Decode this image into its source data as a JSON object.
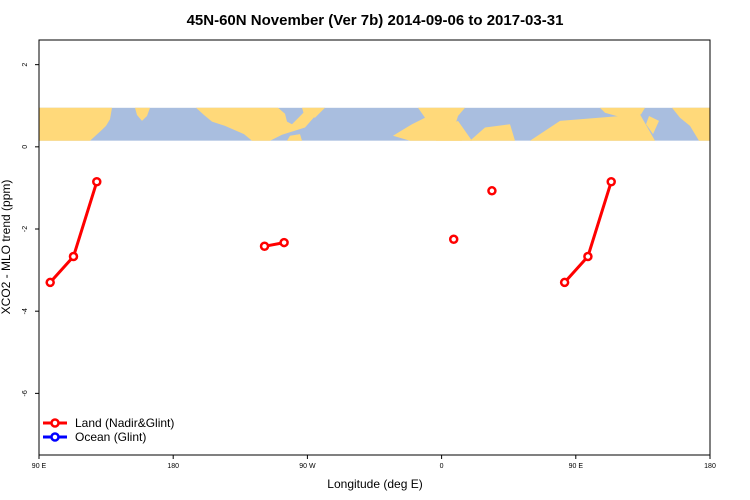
{
  "chart_data": {
    "type": "line",
    "title": "45N-60N November (Ver 7b)   2014-09-06 to 2017-03-31",
    "xlabel": "Longitude (deg E)",
    "ylabel": "XCO2 - MLO trend (ppm)",
    "xlim": [
      90,
      450
    ],
    "ylim": [
      -7.5,
      2.6
    ],
    "x_ticks": [
      {
        "value": 90,
        "label": "90 E"
      },
      {
        "value": 162,
        "label": "180"
      },
      {
        "value": 234,
        "label": "90 W"
      },
      {
        "value": 306,
        "label": "0"
      },
      {
        "value": 378,
        "label": "90 E"
      },
      {
        "value": 450,
        "label": "180"
      }
    ],
    "y_ticks": [
      {
        "value": 2,
        "label": "2"
      },
      {
        "value": 0,
        "label": "0"
      },
      {
        "value": -2,
        "label": "-2"
      },
      {
        "value": -4,
        "label": "-4"
      },
      {
        "value": -6,
        "label": "-6"
      }
    ],
    "map_band": {
      "ymin": 0.15,
      "ymax": 0.95,
      "ocean_color": "#a9bedf",
      "land_color": "#ffd97a"
    },
    "series": [
      {
        "name": "Land (Nadir&Glint)",
        "color": "#ff0000",
        "segments": [
          [
            [
              96,
              -3.3
            ],
            [
              108.5,
              -2.67
            ],
            [
              121,
              -0.85
            ]
          ],
          [
            [
              211,
              -2.42
            ],
            [
              221.5,
              -2.33
            ]
          ],
          [
            [
              312.5,
              -2.25
            ]
          ],
          [
            [
              333,
              -1.07
            ]
          ],
          [
            [
              372,
              -3.3
            ],
            [
              384.5,
              -2.67
            ],
            [
              397,
              -0.85
            ]
          ]
        ]
      },
      {
        "name": "Ocean (Glint)",
        "color": "#0000ff",
        "segments": []
      }
    ],
    "legend_position": "bottom-left"
  }
}
